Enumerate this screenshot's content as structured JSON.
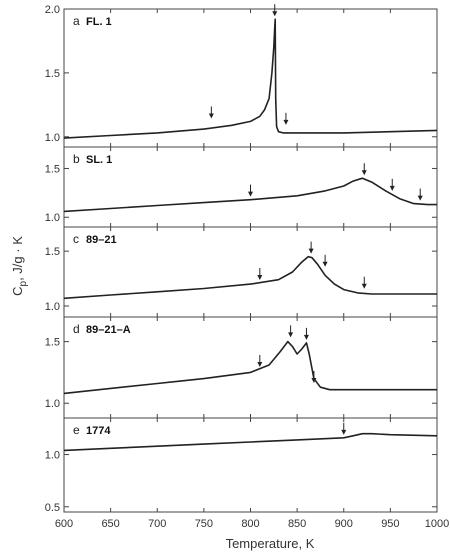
{
  "chart_data": {
    "type": "line",
    "xlabel": "Temperature,   K",
    "ylabel": "C_p, J/g · K",
    "ylabel_parts": {
      "main": "C",
      "sub": "p",
      "rest": ", J/g · K"
    },
    "xlim": [
      600,
      1000
    ],
    "x_ticks": [
      600,
      650,
      700,
      750,
      800,
      850,
      900,
      950,
      1000
    ],
    "panels": [
      {
        "letter": "a",
        "name": "FL. 1",
        "ylim": [
          0.92,
          2.0
        ],
        "y_ticks": [
          1.0,
          1.5,
          2.0
        ],
        "series": [
          {
            "x": [
              600,
              650,
              700,
              750,
              780,
              800,
              810,
              815,
              820,
              823,
              825,
              826,
              826.5,
              827,
              828,
              830,
              835,
              845,
              870,
              900,
              950,
              1000
            ],
            "y": [
              0.99,
              1.01,
              1.03,
              1.06,
              1.09,
              1.12,
              1.16,
              1.21,
              1.3,
              1.5,
              1.7,
              1.85,
              1.92,
              1.3,
              1.08,
              1.04,
              1.03,
              1.03,
              1.03,
              1.03,
              1.04,
              1.05
            ]
          }
        ],
        "arrows": [
          [
            758,
            1.12
          ],
          [
            826,
            1.92
          ],
          [
            838,
            1.07
          ]
        ]
      },
      {
        "letter": "b",
        "name": "SL. 1",
        "ylim": [
          0.9,
          1.72
        ],
        "y_ticks": [
          1.0,
          1.5
        ],
        "series": [
          {
            "x": [
              600,
              650,
              700,
              750,
              800,
              850,
              880,
              900,
              910,
              920,
              930,
              945,
              960,
              975,
              990,
              1000
            ],
            "y": [
              1.06,
              1.09,
              1.12,
              1.15,
              1.18,
              1.22,
              1.27,
              1.32,
              1.37,
              1.4,
              1.36,
              1.27,
              1.19,
              1.14,
              1.13,
              1.13
            ]
          }
        ],
        "arrows": [
          [
            800,
            1.18
          ],
          [
            922,
            1.4
          ],
          [
            952,
            1.24
          ],
          [
            982,
            1.14
          ]
        ]
      },
      {
        "letter": "c",
        "name": "89–21",
        "ylim": [
          0.9,
          1.72
        ],
        "y_ticks": [
          1.0,
          1.5
        ],
        "series": [
          {
            "x": [
              600,
              650,
              700,
              750,
              800,
              830,
              845,
              855,
              862,
              866,
              872,
              880,
              890,
              900,
              915,
              930,
              960,
              1000
            ],
            "y": [
              1.07,
              1.1,
              1.13,
              1.16,
              1.2,
              1.24,
              1.31,
              1.4,
              1.45,
              1.44,
              1.38,
              1.28,
              1.2,
              1.15,
              1.12,
              1.11,
              1.11,
              1.11
            ]
          }
        ],
        "arrows": [
          [
            810,
            1.21
          ],
          [
            865,
            1.45
          ],
          [
            880,
            1.33
          ],
          [
            922,
            1.13
          ]
        ]
      },
      {
        "letter": "d",
        "name": "89–21–A",
        "ylim": [
          0.88,
          1.7
        ],
        "y_ticks": [
          1.0,
          1.5
        ],
        "series": [
          {
            "x": [
              600,
              650,
              700,
              750,
              800,
              820,
              832,
              840,
              845,
              850,
              855,
              860,
              863,
              868,
              875,
              885,
              900,
              950,
              1000
            ],
            "y": [
              1.08,
              1.12,
              1.16,
              1.2,
              1.25,
              1.31,
              1.42,
              1.5,
              1.46,
              1.4,
              1.44,
              1.49,
              1.4,
              1.2,
              1.13,
              1.11,
              1.11,
              1.11,
              1.11
            ]
          }
        ],
        "arrows": [
          [
            810,
            1.27
          ],
          [
            843,
            1.51
          ],
          [
            860,
            1.49
          ],
          [
            868,
            1.14
          ]
        ]
      },
      {
        "letter": "e",
        "name": "1774",
        "ylim": [
          0.45,
          1.35
        ],
        "y_ticks": [
          0.5,
          1.0
        ],
        "series": [
          {
            "x": [
              600,
              650,
              700,
              750,
              800,
              850,
              900,
              910,
              920,
              930,
              950,
              1000
            ],
            "y": [
              1.04,
              1.06,
              1.08,
              1.1,
              1.12,
              1.14,
              1.16,
              1.18,
              1.2,
              1.2,
              1.19,
              1.18
            ]
          }
        ],
        "arrows": [
          [
            900,
            1.16
          ]
        ]
      }
    ]
  }
}
